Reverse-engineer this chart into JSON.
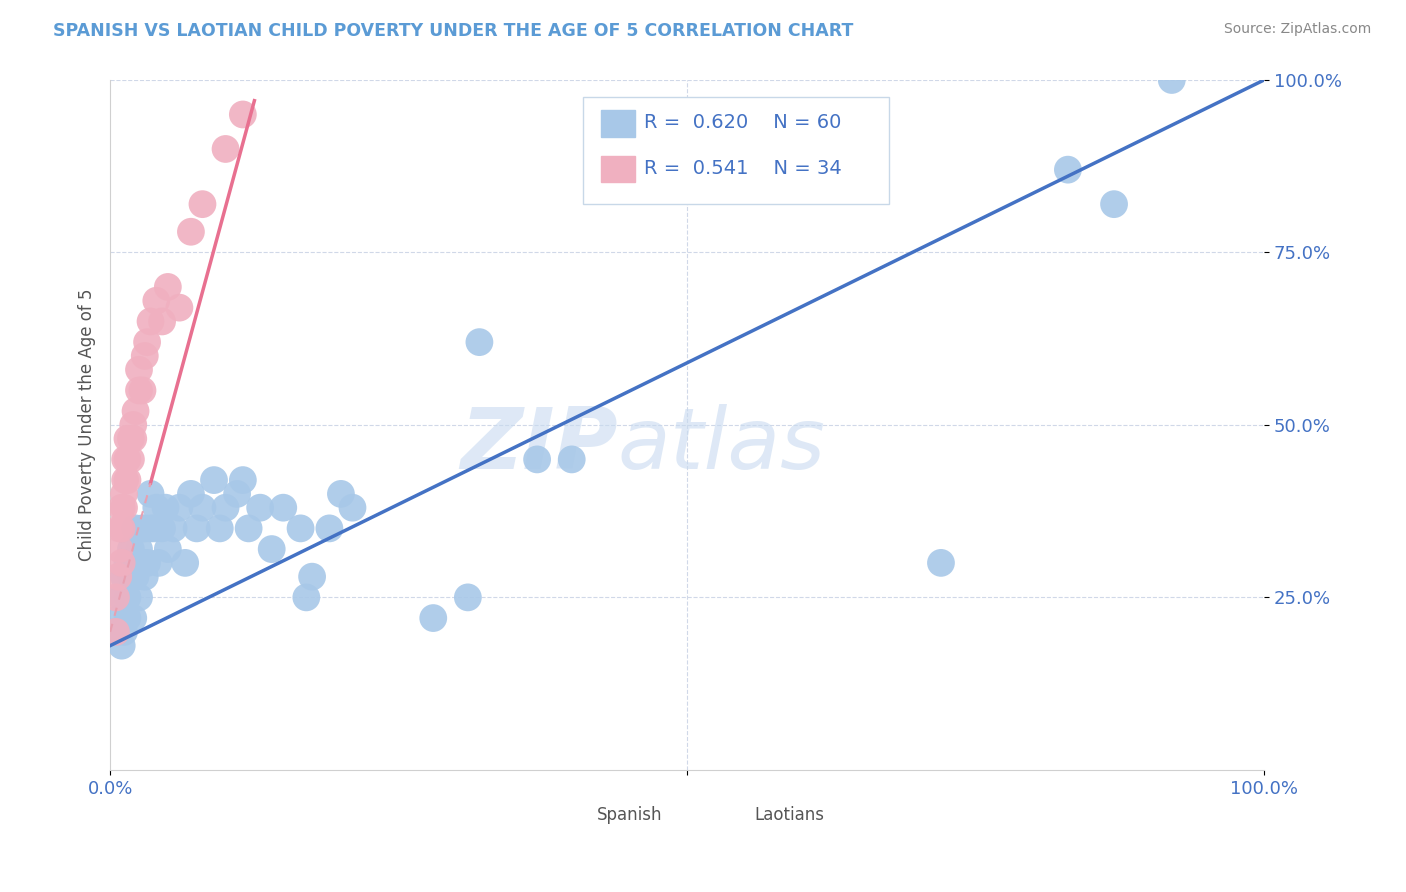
{
  "title": "SPANISH VS LAOTIAN CHILD POVERTY UNDER THE AGE OF 5 CORRELATION CHART",
  "source": "Source: ZipAtlas.com",
  "ylabel": "Child Poverty Under the Age of 5",
  "watermark_zip": "ZIP",
  "watermark_atlas": "atlas",
  "spanish_r": 0.62,
  "spanish_n": 60,
  "laotian_r": 0.541,
  "laotian_n": 34,
  "xlim": [
    0.0,
    1.0
  ],
  "ylim": [
    0.0,
    1.0
  ],
  "spanish_color": "#a8c8e8",
  "laotian_color": "#f0b0c0",
  "trend_spanish_color": "#4472c4",
  "trend_laotian_color": "#e87090",
  "trend_laotian_dash_color": "#e8a0b0",
  "background_color": "#ffffff",
  "title_color": "#5b9bd5",
  "axis_tick_color": "#4472c4",
  "grid_color": "#d0d8e8",
  "spine_color": "#d0d0d0",
  "source_color": "#888888",
  "legend_border_color": "#c8d8e8",
  "watermark_color": "#c8daf0",
  "bottom_legend_text_color": "#555555",
  "spanish_scatter_x": [
    0.005,
    0.008,
    0.01,
    0.01,
    0.012,
    0.012,
    0.015,
    0.015,
    0.015,
    0.018,
    0.018,
    0.02,
    0.02,
    0.022,
    0.022,
    0.025,
    0.025,
    0.028,
    0.028,
    0.03,
    0.03,
    0.032,
    0.035,
    0.035,
    0.038,
    0.04,
    0.042,
    0.045,
    0.048,
    0.05,
    0.055,
    0.06,
    0.065,
    0.07,
    0.075,
    0.08,
    0.09,
    0.095,
    0.1,
    0.11,
    0.115,
    0.12,
    0.13,
    0.14,
    0.15,
    0.165,
    0.17,
    0.175,
    0.19,
    0.2,
    0.21,
    0.28,
    0.31,
    0.32,
    0.37,
    0.4,
    0.72,
    0.83,
    0.87,
    0.92
  ],
  "spanish_scatter_y": [
    0.2,
    0.22,
    0.18,
    0.25,
    0.2,
    0.28,
    0.22,
    0.25,
    0.3,
    0.28,
    0.32,
    0.22,
    0.3,
    0.28,
    0.35,
    0.25,
    0.32,
    0.3,
    0.35,
    0.28,
    0.35,
    0.3,
    0.35,
    0.4,
    0.35,
    0.38,
    0.3,
    0.35,
    0.38,
    0.32,
    0.35,
    0.38,
    0.3,
    0.4,
    0.35,
    0.38,
    0.42,
    0.35,
    0.38,
    0.4,
    0.42,
    0.35,
    0.38,
    0.32,
    0.38,
    0.35,
    0.25,
    0.28,
    0.35,
    0.4,
    0.38,
    0.22,
    0.25,
    0.62,
    0.45,
    0.45,
    0.3,
    0.87,
    0.82,
    1.0
  ],
  "laotian_scatter_x": [
    0.005,
    0.005,
    0.007,
    0.008,
    0.008,
    0.01,
    0.01,
    0.01,
    0.012,
    0.012,
    0.013,
    0.013,
    0.015,
    0.015,
    0.015,
    0.018,
    0.018,
    0.02,
    0.02,
    0.022,
    0.025,
    0.025,
    0.028,
    0.03,
    0.032,
    0.035,
    0.04,
    0.045,
    0.05,
    0.06,
    0.07,
    0.08,
    0.1,
    0.115
  ],
  "laotian_scatter_y": [
    0.2,
    0.25,
    0.28,
    0.32,
    0.35,
    0.3,
    0.35,
    0.38,
    0.38,
    0.4,
    0.42,
    0.45,
    0.42,
    0.45,
    0.48,
    0.45,
    0.48,
    0.48,
    0.5,
    0.52,
    0.55,
    0.58,
    0.55,
    0.6,
    0.62,
    0.65,
    0.68,
    0.65,
    0.7,
    0.67,
    0.78,
    0.82,
    0.9,
    0.95
  ],
  "sp_trend_x0": 0.0,
  "sp_trend_y0": 0.18,
  "sp_trend_x1": 1.0,
  "sp_trend_y1": 1.0,
  "la_trend_x0": 0.0,
  "la_trend_y0": 0.2,
  "la_trend_x1": 0.125,
  "la_trend_y1": 0.97
}
